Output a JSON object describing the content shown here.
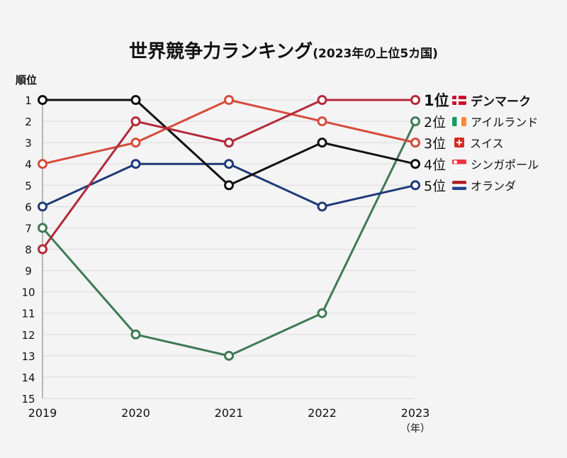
{
  "title": {
    "main": "世界競争力ランキング",
    "sub": "(2023年の上位5カ国)"
  },
  "y_axis_title": "順位",
  "x_axis_unit": "（年）",
  "chart_data": {
    "type": "line",
    "title": "世界競争力ランキング(2023年の上位5カ国)",
    "ylabel": "順位",
    "xlabel": "（年）",
    "x": [
      "2019",
      "2020",
      "2021",
      "2022",
      "2023"
    ],
    "y_ticks": [
      "1",
      "2",
      "3",
      "4",
      "5",
      "6",
      "7",
      "8",
      "9",
      "10",
      "11",
      "12",
      "13",
      "14",
      "15"
    ],
    "ylim": [
      1,
      15
    ],
    "y_inverted": true,
    "grid": true,
    "legend_position": "right",
    "series": [
      {
        "name": "デンマーク",
        "rank_label": "1位",
        "color": "#b22a3a",
        "values": [
          8,
          2,
          3,
          1,
          1
        ]
      },
      {
        "name": "アイルランド",
        "rank_label": "2位",
        "color": "#3f7a55",
        "values": [
          7,
          12,
          13,
          11,
          2
        ]
      },
      {
        "name": "スイス",
        "rank_label": "3位",
        "color": "#d64c3c",
        "values": [
          4,
          3,
          1,
          2,
          3
        ]
      },
      {
        "name": "シンガポール",
        "rank_label": "4位",
        "color": "#111111",
        "values": [
          1,
          1,
          5,
          3,
          4
        ]
      },
      {
        "name": "オランダ",
        "rank_label": "5位",
        "color": "#1f3a78",
        "values": [
          6,
          4,
          4,
          6,
          5
        ]
      }
    ]
  },
  "legend": [
    {
      "rank": "1位",
      "name": "デンマーク",
      "flag": "denmark-flag"
    },
    {
      "rank": "2位",
      "name": "アイルランド",
      "flag": "ireland-flag"
    },
    {
      "rank": "3位",
      "name": "スイス",
      "flag": "switzerland-flag"
    },
    {
      "rank": "4位",
      "name": "シンガポール",
      "flag": "singapore-flag"
    },
    {
      "rank": "5位",
      "name": "オランダ",
      "flag": "netherlands-flag"
    }
  ]
}
